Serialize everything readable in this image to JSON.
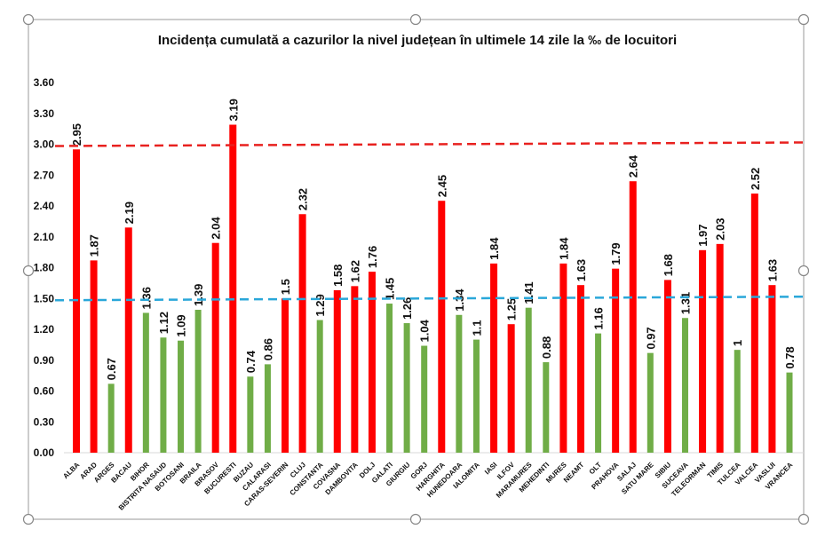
{
  "chart_data": {
    "type": "bar",
    "title": "Incidența cumulată a cazurilor la nivel județean în ultimele 14 zile la ‰ de locuitori",
    "xlabel": "",
    "ylabel": "",
    "ylim": [
      0,
      3.6
    ],
    "yticks": [
      "0.00",
      "0.30",
      "0.60",
      "0.90",
      "1.20",
      "1.50",
      "1.80",
      "2.10",
      "2.40",
      "2.70",
      "3.00",
      "3.30",
      "3.60"
    ],
    "grid": false,
    "legend": "none",
    "categories": [
      "ALBA",
      "ARAD",
      "ARGES",
      "BACAU",
      "BIHOR",
      "BISTRITA NASAUD",
      "BOTOSANI",
      "BRAILA",
      "BRASOV",
      "BUCURESTI",
      "BUZAU",
      "CALARASI",
      "CARAS-SEVERIN",
      "CLUJ",
      "CONSTANTA",
      "COVASNA",
      "DAMBOVITA",
      "DOLJ",
      "GALATI",
      "GIURGIU",
      "GORJ",
      "HARGHITA",
      "HUNEDOARA",
      "IALOMITA",
      "IASI",
      "ILFOV",
      "MARAMURES",
      "MEHEDINTI",
      "MURES",
      "NEAMT",
      "OLT",
      "PRAHOVA",
      "SALAJ",
      "SATU MARE",
      "SIBIU",
      "SUCEAVA",
      "TELEORMAN",
      "TIMIS",
      "TULCEA",
      "VALCEA",
      "VASLUI",
      "VRANCEA"
    ],
    "values": [
      2.95,
      1.87,
      0.67,
      2.19,
      1.36,
      1.12,
      1.09,
      1.39,
      2.04,
      3.19,
      0.74,
      0.86,
      1.5,
      2.32,
      1.29,
      1.58,
      1.62,
      1.76,
      1.45,
      1.26,
      1.04,
      2.45,
      1.34,
      1.1,
      1.84,
      1.25,
      1.41,
      0.88,
      1.84,
      1.63,
      1.16,
      1.79,
      2.64,
      0.97,
      1.68,
      1.31,
      1.97,
      2.03,
      1,
      2.52,
      1.63,
      0.78
    ],
    "bar_colors": [
      "red",
      "red",
      "green",
      "red",
      "green",
      "green",
      "green",
      "green",
      "red",
      "red",
      "green",
      "green",
      "red",
      "red",
      "green",
      "red",
      "red",
      "red",
      "green",
      "green",
      "green",
      "red",
      "green",
      "green",
      "red",
      "red",
      "green",
      "green",
      "red",
      "red",
      "green",
      "red",
      "red",
      "green",
      "red",
      "green",
      "red",
      "red",
      "green",
      "red",
      "red",
      "green"
    ],
    "colors": {
      "red": "#ff0000",
      "green": "#70ad47"
    },
    "reference_lines": [
      {
        "value": 3.0,
        "color": "#e8211f",
        "style": "dashed"
      },
      {
        "value": 1.5,
        "color": "#2aa7d9",
        "style": "dashed"
      }
    ]
  }
}
